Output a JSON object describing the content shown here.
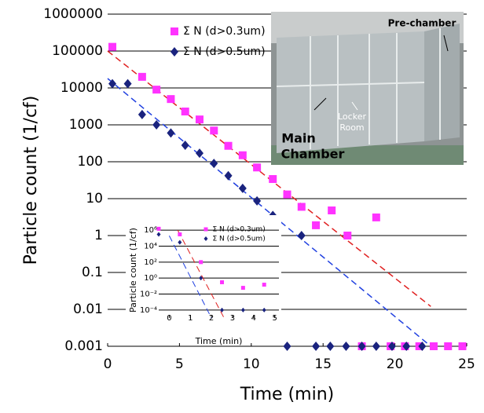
{
  "chart_data": [
    {
      "type": "scatter",
      "log_y": true,
      "grid": true,
      "y_label": "Particle count (1/cf)",
      "x_label": "Time (min)",
      "xlim": [
        0,
        25
      ],
      "xticks": [
        0,
        5,
        10,
        15,
        20,
        25
      ],
      "ylim": [
        0.001,
        1000000
      ],
      "yticks": [
        0.001,
        0.01,
        0.1,
        1,
        10,
        100,
        1000,
        10000,
        100000,
        1000000
      ],
      "series": [
        {
          "name": "Σ N (d>0.3um)",
          "color": "#ff33ff",
          "marker": "square",
          "x": [
            0.33,
            2.4,
            3.4,
            4.4,
            5.4,
            6.4,
            7.4,
            8.4,
            9.4,
            10.4,
            11.5,
            12.5,
            13.5,
            14.5,
            15.6,
            16.7,
            18.7,
            17.7,
            19.7,
            20.7,
            21.7,
            22.7,
            23.7,
            24.7
          ],
          "values": [
            130000,
            20000,
            9000,
            5000,
            2300,
            1400,
            700,
            270,
            150,
            70,
            34,
            13,
            6,
            1.9,
            4.8,
            1,
            3.1,
            0.001,
            0.001,
            0.001,
            0.001,
            0.001,
            0.001,
            0.001
          ]
        },
        {
          "name": "Σ N (d>0.5um)",
          "color": "#1a237e",
          "marker": "diamond",
          "x": [
            0.33,
            1.4,
            2.4,
            3.4,
            4.4,
            5.4,
            6.4,
            7.4,
            8.4,
            9.4,
            10.4,
            11.5,
            13.5,
            12.5,
            14.5,
            15.5,
            16.6,
            17.7,
            18.7,
            19.8,
            20.8,
            21.9
          ],
          "values": [
            13000,
            13000,
            1900,
            1000,
            600,
            280,
            170,
            90,
            42,
            19,
            8.7,
            3.5,
            1,
            0.001,
            0.001,
            0.001,
            0.001,
            0.001,
            0.001,
            0.001,
            0.001,
            0.001
          ]
        }
      ],
      "trendlines": [
        {
          "color": "#e02020",
          "x": [
            0,
            22.5
          ],
          "values": [
            100000,
            0.012
          ]
        },
        {
          "color": "#2040e0",
          "x": [
            0,
            22.5
          ],
          "values": [
            18000,
            0.001
          ]
        }
      ]
    },
    {
      "type": "scatter",
      "log_y": true,
      "grid": true,
      "y_label": "Particle count (1/cf)",
      "x_label": "Time (min)",
      "xlim": [
        -0.5,
        5.2
      ],
      "xticks": [
        0,
        1,
        2,
        3,
        4,
        5
      ],
      "ylim": [
        1e-05,
        10000000
      ],
      "yticks": [
        {
          "value": 0.0001,
          "label": "10⁻⁴"
        },
        {
          "value": 0.01,
          "label": "10⁻²"
        },
        {
          "value": 1,
          "label": "10⁰"
        },
        {
          "value": 100,
          "label": "10²"
        },
        {
          "value": 10000,
          "label": "10⁴"
        },
        {
          "value": 1000000,
          "label": "10⁶"
        }
      ],
      "series": [
        {
          "name": "Σ N (d>0.3um)",
          "color": "#ff33ff",
          "marker": "square",
          "x": [
            -0.5,
            0.5,
            1.5,
            2.5,
            3.5,
            4.5
          ],
          "values": [
            1500000,
            300000,
            100,
            0.3,
            0.06,
            0.15
          ]
        },
        {
          "name": "Σ N (d>0.5um)",
          "color": "#1a237e",
          "marker": "diamond",
          "x": [
            -0.5,
            0.5,
            1.5,
            2.5,
            3.5,
            4.5
          ],
          "values": [
            300000,
            30000,
            1,
            0.0001,
            0.0001,
            0.0001
          ]
        }
      ],
      "trendlines": [
        {
          "color": "#e02020",
          "x": [
            0.4,
            2.6
          ],
          "values": [
            1000000,
            1e-05
          ]
        },
        {
          "color": "#2040e0",
          "x": [
            0,
            2
          ],
          "values": [
            200000,
            1e-05
          ]
        }
      ]
    }
  ],
  "photo": {
    "pre_chamber": "Pre-chamber",
    "locker_room": [
      "Locker",
      "Room"
    ],
    "main_chamber": [
      "Main",
      "Chamber"
    ]
  }
}
